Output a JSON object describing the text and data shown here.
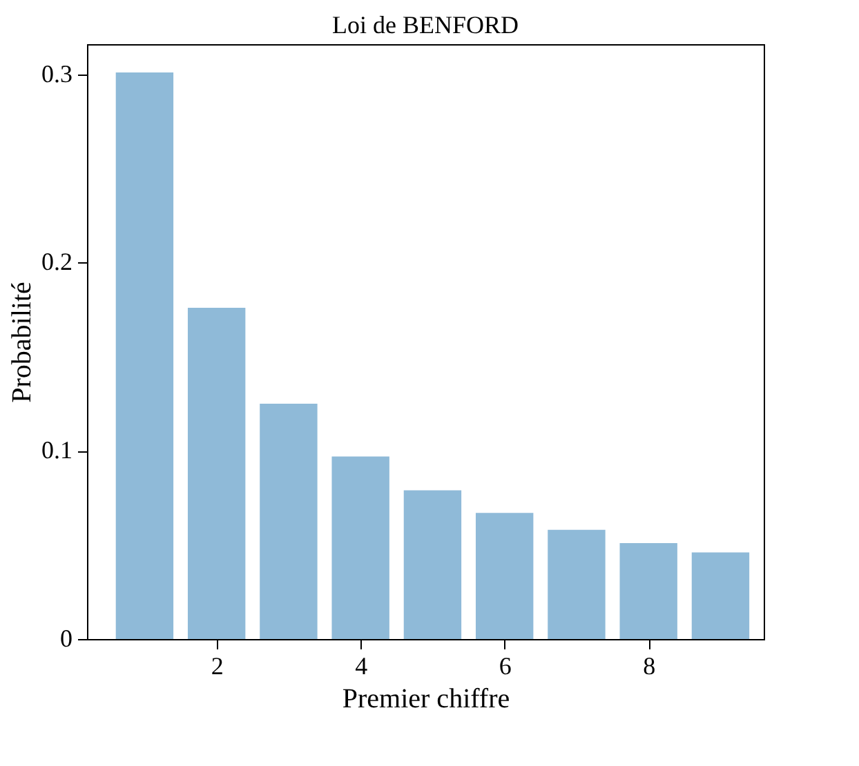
{
  "chart_data": {
    "type": "bar",
    "title": "Loi de BENFORD",
    "xlabel": "Premier chiffre",
    "ylabel": "Probabilité",
    "x": [
      1,
      2,
      3,
      4,
      5,
      6,
      7,
      8,
      9
    ],
    "values": [
      0.301,
      0.176,
      0.125,
      0.097,
      0.079,
      0.067,
      0.058,
      0.051,
      0.046
    ],
    "color": "#8fbad8",
    "xlim": [
      0.2,
      9.6
    ],
    "xticks": [
      2,
      4,
      6,
      8
    ],
    "ylim": [
      0,
      0.316
    ],
    "yticks": [
      0,
      0.1,
      0.2,
      0.3
    ],
    "grid": false
  }
}
